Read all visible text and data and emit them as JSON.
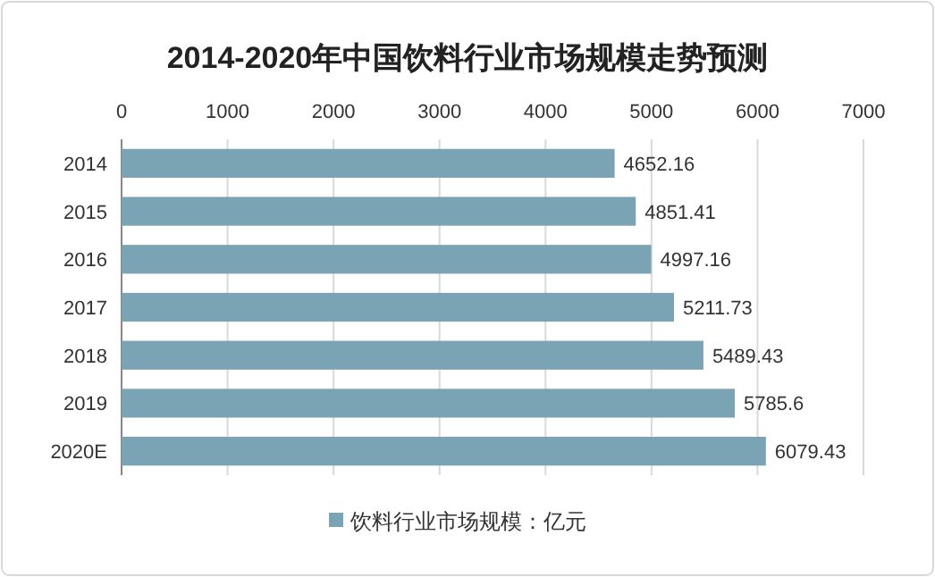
{
  "chart_data": {
    "type": "bar",
    "orientation": "horizontal",
    "title": "2014-2020年中国饮料行业市场规模走势预测",
    "categories": [
      "2014",
      "2015",
      "2016",
      "2017",
      "2018",
      "2019",
      "2020E"
    ],
    "series": [
      {
        "name": "饮料行业市场规模：亿元",
        "color": "#7aa3b4",
        "values": [
          4652.16,
          4851.41,
          4997.16,
          5211.73,
          5489.43,
          5785.6,
          6079.43
        ]
      }
    ],
    "xlim": [
      0,
      7000
    ],
    "xticks": [
      0,
      1000,
      2000,
      3000,
      4000,
      5000,
      6000,
      7000
    ],
    "grid": "x",
    "legend": "bottom",
    "data_labels": true
  }
}
